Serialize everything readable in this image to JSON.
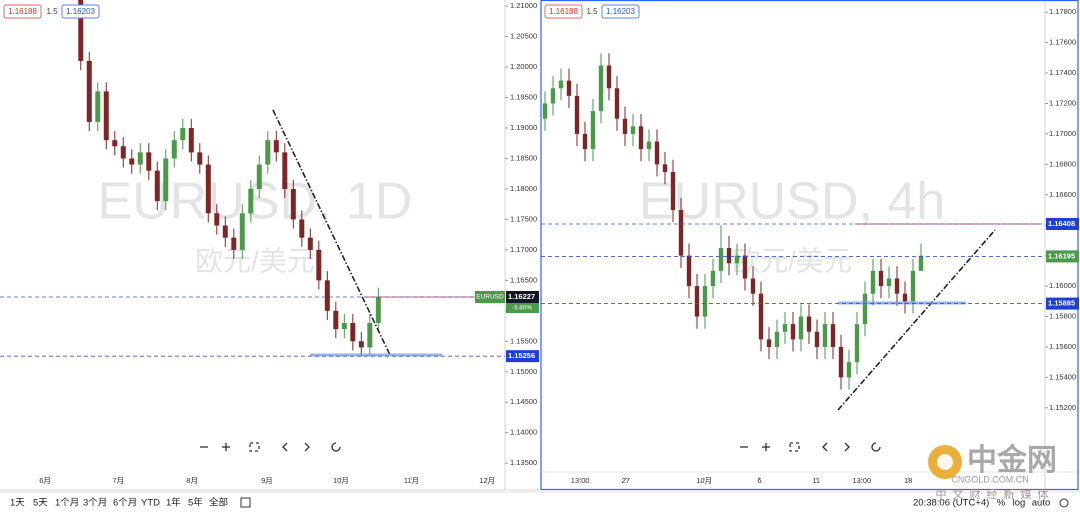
{
  "chart_data": [
    {
      "type": "candlestick",
      "watermark": "EURUSD, 1D",
      "watermark_sub": "欧元/美元",
      "header": {
        "bid": "1.16188",
        "spread": "1.5",
        "ask": "1.16203"
      },
      "up_color": "#4a9a4a",
      "down_color": "#7e2626",
      "categories": [
        null,
        null,
        null,
        null,
        null,
        null,
        null,
        null,
        null,
        null,
        null,
        null,
        null,
        null,
        null,
        null,
        null,
        null,
        null,
        null,
        null,
        null,
        null,
        null,
        null,
        null,
        null,
        null,
        null,
        null,
        null,
        null,
        null,
        null,
        null,
        null
      ],
      "open": [
        1.212,
        1.201,
        1.191,
        1.196,
        1.188,
        1.187,
        1.185,
        1.184,
        1.186,
        1.183,
        1.178,
        1.185,
        1.188,
        1.19,
        1.186,
        1.184,
        1.176,
        1.174,
        1.172,
        1.17,
        1.176,
        1.18,
        1.184,
        1.188,
        1.186,
        1.18,
        1.175,
        1.172,
        1.17,
        1.165,
        1.16,
        1.157,
        1.158,
        1.155,
        1.154,
        1.158
      ],
      "high": [
        1.2135,
        1.2025,
        1.1975,
        1.1975,
        1.1895,
        1.1885,
        1.1865,
        1.1875,
        1.1875,
        1.1845,
        1.1865,
        1.1895,
        1.1915,
        1.1915,
        1.1875,
        1.1855,
        1.1775,
        1.1755,
        1.1735,
        1.1775,
        1.1815,
        1.1855,
        1.1895,
        1.1895,
        1.1875,
        1.1815,
        1.1765,
        1.1735,
        1.1715,
        1.1665,
        1.1615,
        1.1595,
        1.1595,
        1.1565,
        1.1595,
        1.1638
      ],
      "low": [
        1.1995,
        1.1895,
        1.1895,
        1.1865,
        1.1855,
        1.1835,
        1.1825,
        1.1825,
        1.1815,
        1.1765,
        1.1765,
        1.1835,
        1.1865,
        1.1845,
        1.1825,
        1.1745,
        1.1725,
        1.1705,
        1.1685,
        1.1685,
        1.1745,
        1.1785,
        1.1825,
        1.1845,
        1.1785,
        1.1735,
        1.1705,
        1.1685,
        1.1635,
        1.1585,
        1.1555,
        1.1555,
        1.1535,
        1.1525,
        1.1525,
        1.1565
      ],
      "close": [
        1.201,
        1.191,
        1.196,
        1.188,
        1.187,
        1.185,
        1.184,
        1.186,
        1.183,
        1.178,
        1.185,
        1.188,
        1.19,
        1.186,
        1.184,
        1.176,
        1.174,
        1.172,
        1.17,
        1.176,
        1.18,
        1.184,
        1.188,
        1.186,
        1.18,
        1.175,
        1.172,
        1.17,
        1.165,
        1.16,
        1.157,
        1.158,
        1.155,
        1.154,
        1.158,
        1.1623
      ],
      "xlim": [
        -9,
        50.4
      ],
      "xticks": [
        {
          "value": -3.7,
          "label": "6月"
        },
        {
          "value": 4.9,
          "label": "7月"
        },
        {
          "value": 13.6,
          "label": "8月"
        },
        {
          "value": 22.4,
          "label": "9月"
        },
        {
          "value": 31.1,
          "label": "10月"
        },
        {
          "value": 39.4,
          "label": "11月"
        },
        {
          "value": 48.3,
          "label": "12月"
        }
      ],
      "ylim": [
        1.1306,
        1.211
      ],
      "yticks": [
        {
          "value": 1.21,
          "label": "1.21000"
        },
        {
          "value": 1.205,
          "label": "1.20500"
        },
        {
          "value": 1.2,
          "label": "1.20000"
        },
        {
          "value": 1.195,
          "label": "1.19500"
        },
        {
          "value": 1.19,
          "label": "1.19000"
        },
        {
          "value": 1.185,
          "label": "1.18500"
        },
        {
          "value": 1.18,
          "label": "1.18000"
        },
        {
          "value": 1.175,
          "label": "1.17500"
        },
        {
          "value": 1.17,
          "label": "1.17000"
        },
        {
          "value": 1.165,
          "label": "1.16500"
        },
        {
          "value": 1.16,
          "label": "1.16000"
        },
        {
          "value": 1.155,
          "label": "1.15500"
        },
        {
          "value": 1.15,
          "label": "1.15000"
        },
        {
          "value": 1.145,
          "label": "1.14500"
        },
        {
          "value": 1.14,
          "label": "1.14000"
        },
        {
          "value": 1.135,
          "label": "1.13500"
        }
      ],
      "markers": [
        {
          "value": 1.16227,
          "color": "#131722",
          "tag": "EURUSD",
          "tag_color": "#4a9a4a",
          "change": "-3.80%"
        },
        {
          "value": 1.15256,
          "color": "#1e3fd6"
        }
      ]
    },
    {
      "type": "candlestick",
      "watermark": "EURUSD, 4h",
      "watermark_sub": "欧元/美元",
      "header": {
        "bid": "1.16188",
        "spread": "1.5",
        "ask": "1.16203"
      },
      "up_color": "#4a9a4a",
      "down_color": "#7e2626",
      "categories": [
        null,
        null,
        null,
        null,
        null,
        null,
        null,
        null,
        null,
        null,
        null,
        null,
        null,
        null,
        null,
        null,
        null,
        null,
        null,
        null,
        null,
        null,
        null,
        null,
        null,
        null,
        null,
        null,
        null,
        null,
        null,
        null,
        null,
        null,
        null,
        null,
        null,
        null,
        null,
        null,
        null,
        null,
        null,
        null,
        null,
        null,
        null,
        null
      ],
      "open": [
        1.171,
        1.172,
        1.173,
        1.1735,
        1.1725,
        1.17,
        1.169,
        1.1715,
        1.1745,
        1.173,
        1.171,
        1.17,
        1.1705,
        1.169,
        1.1695,
        1.168,
        1.1675,
        1.165,
        1.162,
        1.16,
        1.158,
        1.16,
        1.161,
        1.1625,
        1.1615,
        1.162,
        1.1605,
        1.1595,
        1.1565,
        1.156,
        1.157,
        1.1575,
        1.1565,
        1.158,
        1.157,
        1.156,
        1.1575,
        1.156,
        1.154,
        1.155,
        1.1575,
        1.1595,
        1.161,
        1.16,
        1.1605,
        1.1595,
        1.159,
        1.161
      ],
      "high": [
        1.1728,
        1.1738,
        1.1743,
        1.1743,
        1.1733,
        1.1708,
        1.1723,
        1.1753,
        1.1753,
        1.1738,
        1.1718,
        1.1713,
        1.1713,
        1.1703,
        1.1703,
        1.1688,
        1.1683,
        1.1658,
        1.1628,
        1.1608,
        1.1608,
        1.1618,
        1.164,
        1.1633,
        1.1628,
        1.1628,
        1.1613,
        1.1603,
        1.1573,
        1.1578,
        1.1583,
        1.1583,
        1.1588,
        1.1588,
        1.1578,
        1.1583,
        1.1583,
        1.1568,
        1.1558,
        1.1583,
        1.1603,
        1.1618,
        1.1618,
        1.1613,
        1.1613,
        1.1603,
        1.1618,
        1.1628
      ],
      "low": [
        1.1702,
        1.1712,
        1.1722,
        1.1717,
        1.1692,
        1.1682,
        1.1682,
        1.1707,
        1.1722,
        1.1702,
        1.1692,
        1.1692,
        1.1682,
        1.1682,
        1.1672,
        1.1667,
        1.1642,
        1.1612,
        1.1592,
        1.1572,
        1.1572,
        1.1592,
        1.1602,
        1.1607,
        1.1607,
        1.1597,
        1.1587,
        1.1557,
        1.1552,
        1.1552,
        1.1562,
        1.1557,
        1.1557,
        1.1562,
        1.1552,
        1.1552,
        1.1552,
        1.1532,
        1.1532,
        1.1542,
        1.1567,
        1.1587,
        1.1592,
        1.1592,
        1.1587,
        1.1582,
        1.1582,
        1.1612
      ],
      "close": [
        1.172,
        1.173,
        1.1735,
        1.1725,
        1.17,
        1.169,
        1.1715,
        1.1745,
        1.173,
        1.171,
        1.17,
        1.1705,
        1.169,
        1.1695,
        1.168,
        1.1675,
        1.165,
        1.162,
        1.16,
        1.158,
        1.16,
        1.161,
        1.1625,
        1.1615,
        1.162,
        1.1605,
        1.1595,
        1.1565,
        1.156,
        1.157,
        1.1575,
        1.1565,
        1.158,
        1.157,
        1.156,
        1.1575,
        1.156,
        1.154,
        1.155,
        1.1575,
        1.1595,
        1.161,
        1.16,
        1.1605,
        1.1595,
        1.159,
        1.161,
        1.162
      ],
      "xlim": [
        0,
        63
      ],
      "xticks": [
        {
          "value": 4.9,
          "label": "13:00"
        },
        {
          "value": 10.6,
          "label": "27"
        },
        {
          "value": 20.4,
          "label": "10月"
        },
        {
          "value": 27.3,
          "label": "6"
        },
        {
          "value": 34.4,
          "label": "11"
        },
        {
          "value": 40.1,
          "label": "13:00"
        },
        {
          "value": 45.9,
          "label": "18"
        }
      ],
      "ylim": [
        1.1466,
        1.1788
      ],
      "yticks": [
        {
          "value": 1.178,
          "label": "1.17800"
        },
        {
          "value": 1.176,
          "label": "1.17600"
        },
        {
          "value": 1.174,
          "label": "1.17400"
        },
        {
          "value": 1.172,
          "label": "1.17200"
        },
        {
          "value": 1.17,
          "label": "1.17000"
        },
        {
          "value": 1.168,
          "label": "1.16800"
        },
        {
          "value": 1.166,
          "label": "1.16600"
        },
        {
          "value": 1.164,
          "label": "1.16400"
        },
        {
          "value": 1.162,
          "label": "1.16200"
        },
        {
          "value": 1.16,
          "label": "1.16000"
        },
        {
          "value": 1.158,
          "label": "1.15800"
        },
        {
          "value": 1.156,
          "label": "1.15600"
        },
        {
          "value": 1.154,
          "label": "1.15400"
        },
        {
          "value": 1.152,
          "label": "1.15200"
        }
      ],
      "markers": [
        {
          "value": 1.16408,
          "color": "#1e3fd6"
        },
        {
          "value": 1.16195,
          "color": "#4a9a4a"
        },
        {
          "value": 1.15885,
          "color": "#1e3fd6"
        }
      ]
    }
  ],
  "toolbar": {
    "ranges": [
      "1天",
      "5天",
      "1个月",
      "3个月",
      "6个月",
      "YTD",
      "1年",
      "5年",
      "全部"
    ],
    "time": "20:38:06 (UTC+4)",
    "options": [
      "%",
      "log",
      "auto"
    ]
  },
  "logo": {
    "name": "中金网",
    "domain": "CNGOLD.COM.CN",
    "slogan": "中文财经新媒体"
  }
}
